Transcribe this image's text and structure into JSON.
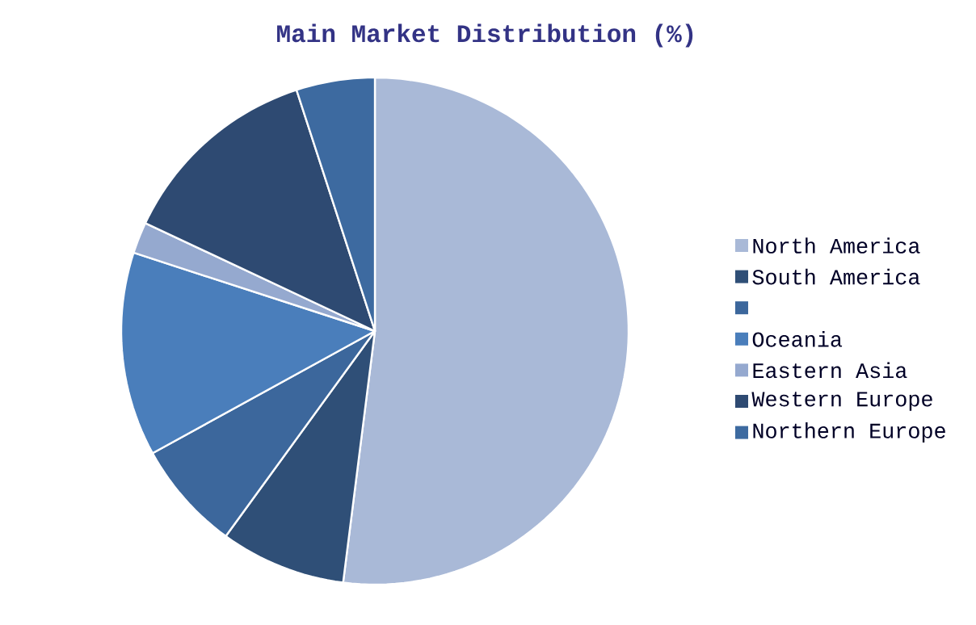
{
  "chart_data": {
    "type": "pie",
    "title": "Main Market Distribution (%)",
    "categories": [
      "North America",
      "South America",
      null,
      "Oceania",
      "Eastern Asia",
      "Western Europe",
      "Northern Europe"
    ],
    "values": [
      52,
      8,
      7,
      13,
      2,
      13,
      5
    ],
    "colors": [
      "#a9b9d7",
      "#2f4f77",
      "#3c679c",
      "#4a7ebb",
      "#95a9cf",
      "#2e4a72",
      "#3d6aa0"
    ],
    "legend": "right"
  }
}
